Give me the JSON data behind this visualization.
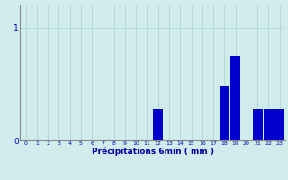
{
  "xlabel": "Précipitations 6min ( mm )",
  "values": [
    0,
    0,
    0,
    0,
    0,
    0,
    0,
    0,
    0,
    0,
    0,
    0,
    0.28,
    0,
    0,
    0,
    0,
    0,
    0.48,
    0.75,
    0,
    0.28,
    0.28,
    0.28
  ],
  "categories": [
    "0",
    "1",
    "2",
    "3",
    "4",
    "5",
    "6",
    "7",
    "8",
    "9",
    "10",
    "11",
    "12",
    "13",
    "14",
    "15",
    "16",
    "17",
    "18",
    "19",
    "20",
    "21",
    "22",
    "23"
  ],
  "bar_color": "#0000cc",
  "bg_color": "#d0ecec",
  "grid_color": "#b8d8d8",
  "axis_color": "#888888",
  "text_color": "#0000aa",
  "ylim": [
    0,
    1.2
  ],
  "yticks": [
    0,
    1
  ],
  "xlim": [
    -0.5,
    23.5
  ]
}
